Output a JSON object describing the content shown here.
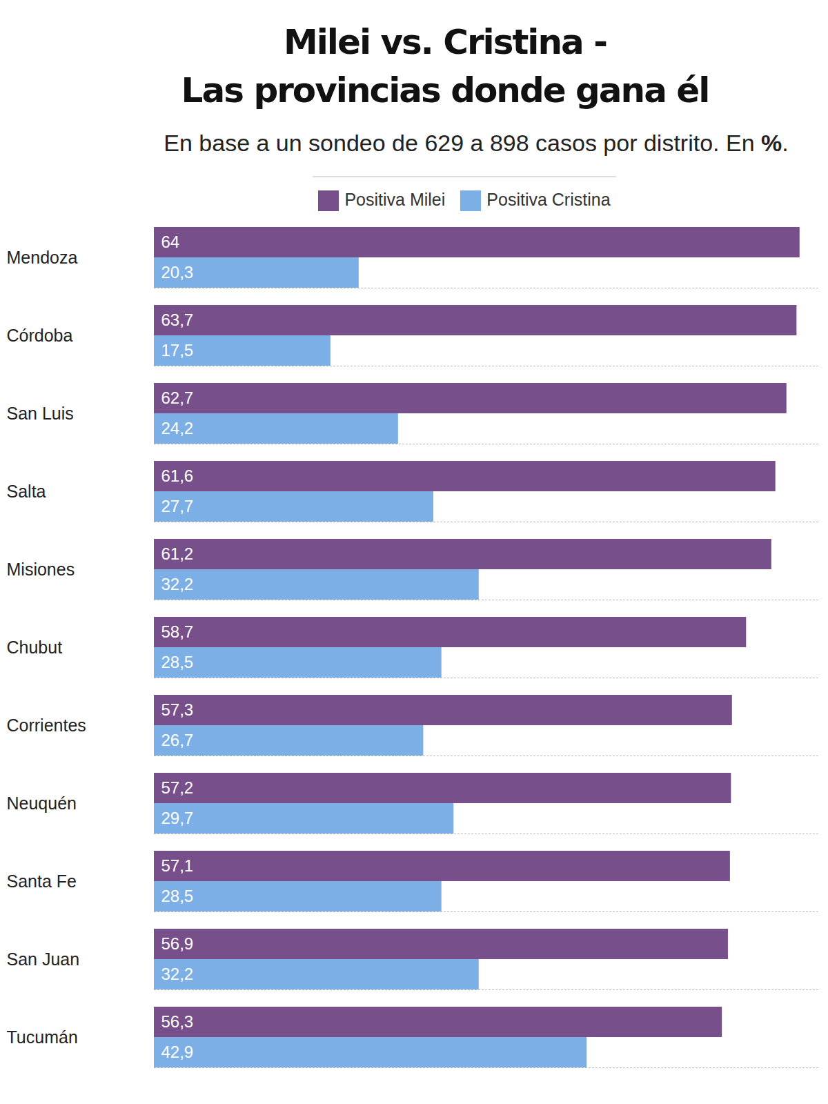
{
  "chart_data": {
    "type": "bar",
    "orientation": "horizontal",
    "title": "Milei vs. Cristina -\nLas provincias donde gana él",
    "subtitle": "En base a un sondeo de 629 a 898 casos por distrito. En %.",
    "categories": [
      "Mendoza",
      "Córdoba",
      "San Luis",
      "Salta",
      "Misiones",
      "Chubut",
      "Corrientes",
      "Neuquén",
      "Santa Fe",
      "San Juan",
      "Tucumán"
    ],
    "series": [
      {
        "name": "Positiva Milei",
        "color": "#774f8b",
        "values": [
          64,
          63.7,
          62.7,
          61.6,
          61.2,
          58.7,
          57.3,
          57.2,
          57.1,
          56.9,
          56.3
        ],
        "value_labels": [
          "64",
          "63,7",
          "62,7",
          "61,6",
          "61,2",
          "58,7",
          "57,3",
          "57,2",
          "57,1",
          "56,9",
          "56,3"
        ]
      },
      {
        "name": "Positiva Cristina",
        "color": "#7bafe6",
        "values": [
          20.3,
          17.5,
          24.2,
          27.7,
          32.2,
          28.5,
          26.7,
          29.7,
          28.5,
          32.2,
          42.9
        ],
        "value_labels": [
          "20,3",
          "17,5",
          "24,2",
          "27,7",
          "32,2",
          "28,5",
          "26,7",
          "29,7",
          "28,5",
          "32,2",
          "42,9"
        ]
      }
    ],
    "xlim": [
      0,
      66
    ],
    "xticks": [],
    "tick_labels": "y",
    "data_labels": true,
    "legend": "top",
    "grid": false
  }
}
